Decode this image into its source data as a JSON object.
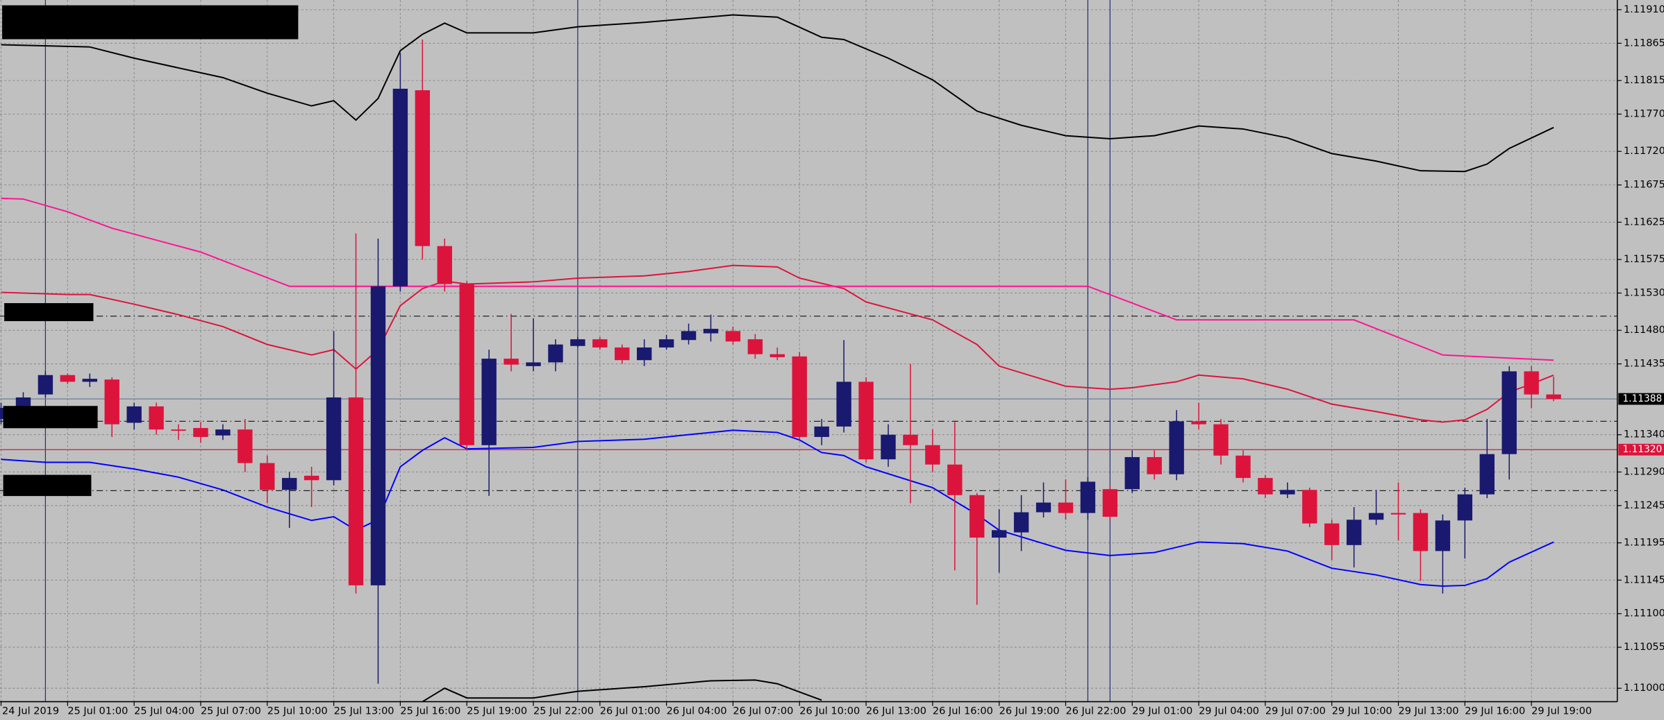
{
  "chart_data": {
    "type": "candlestick",
    "categories": [
      "24 Jul 2019",
      null,
      null,
      "25 Jul 01:00",
      null,
      null,
      "25 Jul 04:00",
      null,
      null,
      "25 Jul 07:00",
      null,
      null,
      "25 Jul 10:00",
      null,
      null,
      "25 Jul 13:00",
      null,
      null,
      "25 Jul 16:00",
      null,
      null,
      "25 Jul 19:00",
      null,
      null,
      "25 Jul 22:00",
      null,
      null,
      "26 Jul 01:00",
      null,
      null,
      "26 Jul 04:00",
      null,
      null,
      "26 Jul 07:00",
      null,
      null,
      "26 Jul 10:00",
      null,
      null,
      "26 Jul 13:00",
      null,
      null,
      "26 Jul 16:00",
      null,
      null,
      "26 Jul 19:00",
      null,
      null,
      "26 Jul 22:00",
      null,
      null,
      "29 Jul 01:00",
      null,
      null,
      "29 Jul 04:00",
      null,
      null,
      "29 Jul 07:00",
      null,
      null,
      "29 Jul 10:00",
      null,
      null,
      "29 Jul 13:00",
      null,
      null,
      "29 Jul 16:00",
      null,
      null,
      "29 Jul 19:00",
      null
    ],
    "open": [
      1.11361,
      1.11371,
      1.11394,
      1.1142,
      1.11411,
      1.11414,
      1.11356,
      1.11378,
      1.11347,
      1.11349,
      1.11339,
      1.11347,
      1.11302,
      1.11266,
      1.11285,
      1.11279,
      1.1139,
      1.11138,
      1.11539,
      1.11802,
      1.11593,
      1.11542,
      1.11326,
      1.11442,
      1.11432,
      1.11437,
      1.11459,
      1.11468,
      1.11457,
      1.1144,
      1.11457,
      1.11467,
      1.11476,
      1.11479,
      1.11468,
      1.11448,
      1.11445,
      1.11337,
      1.11351,
      1.11411,
      1.11307,
      1.1134,
      1.11326,
      1.113,
      1.11259,
      1.11202,
      1.11209,
      1.11236,
      1.11249,
      1.11235,
      1.11267,
      1.11267,
      1.1131,
      1.11287,
      1.11358,
      1.11354,
      1.11312,
      1.11282,
      1.1126,
      1.11266,
      1.11221,
      1.11192,
      1.11226,
      1.11235,
      1.11235,
      1.11184,
      1.11225,
      1.1126,
      1.11314,
      1.11425,
      1.11394
    ],
    "high": [
      1.11383,
      1.11397,
      1.11425,
      1.11422,
      1.11422,
      1.11417,
      1.11383,
      1.11383,
      1.11354,
      1.11357,
      1.11354,
      1.11361,
      1.11312,
      1.1129,
      1.11297,
      1.11479,
      1.1161,
      1.11603,
      1.11852,
      1.1187,
      1.11603,
      1.11546,
      1.11454,
      1.11502,
      1.11496,
      1.11468,
      1.11471,
      1.11471,
      1.11461,
      1.11468,
      1.11474,
      1.11489,
      1.11501,
      1.11485,
      1.11475,
      1.11457,
      1.11451,
      1.11361,
      1.11467,
      1.11417,
      1.11354,
      1.11435,
      1.11347,
      1.11357,
      1.11262,
      1.1124,
      1.11259,
      1.11276,
      1.1128,
      1.11283,
      1.11272,
      1.11319,
      1.11319,
      1.11373,
      1.11383,
      1.11361,
      1.11319,
      1.11286,
      1.11276,
      1.11269,
      1.11226,
      1.11243,
      1.11266,
      1.11276,
      1.1124,
      1.11233,
      1.11269,
      1.11361,
      1.11432,
      1.11432,
      1.11418
    ],
    "low": [
      1.11354,
      1.11361,
      1.1139,
      1.11408,
      1.11404,
      1.11337,
      1.11347,
      1.1134,
      1.11333,
      1.11329,
      1.11333,
      1.1129,
      1.11248,
      1.11215,
      1.11243,
      1.11272,
      1.11127,
      1.11006,
      1.11532,
      1.11575,
      1.11532,
      1.11319,
      1.11258,
      1.11425,
      1.11425,
      1.11425,
      1.11457,
      1.11454,
      1.11435,
      1.11432,
      1.11454,
      1.11461,
      1.11465,
      1.11461,
      1.11442,
      1.1144,
      1.11333,
      1.11326,
      1.11343,
      1.11303,
      1.11297,
      1.11248,
      1.1129,
      1.11158,
      1.11112,
      1.11155,
      1.11184,
      1.11229,
      1.11226,
      1.11226,
      1.11226,
      1.11262,
      1.1128,
      1.11279,
      1.11347,
      1.113,
      1.11276,
      1.11255,
      1.11255,
      1.11216,
      1.11172,
      1.11162,
      1.11219,
      1.11198,
      1.11144,
      1.11127,
      1.11174,
      1.11255,
      1.1128,
      1.11376,
      1.11385
    ],
    "close": [
      1.11376,
      1.1139,
      1.1142,
      1.11411,
      1.11415,
      1.11354,
      1.11378,
      1.11347,
      1.11346,
      1.11337,
      1.11347,
      1.11302,
      1.11266,
      1.11282,
      1.11279,
      1.1139,
      1.11138,
      1.11539,
      1.11804,
      1.11593,
      1.11542,
      1.11326,
      1.11442,
      1.11434,
      1.11437,
      1.11461,
      1.11468,
      1.11457,
      1.1144,
      1.11457,
      1.11468,
      1.11479,
      1.11482,
      1.11465,
      1.11448,
      1.11444,
      1.11337,
      1.11351,
      1.11411,
      1.11307,
      1.1134,
      1.11326,
      1.113,
      1.11259,
      1.11202,
      1.11212,
      1.11236,
      1.11249,
      1.11235,
      1.11277,
      1.1123,
      1.1131,
      1.11287,
      1.11358,
      1.11354,
      1.11312,
      1.11282,
      1.1126,
      1.11266,
      1.11221,
      1.11192,
      1.11226,
      1.11235,
      1.11233,
      1.11184,
      1.11225,
      1.1126,
      1.11314,
      1.11425,
      1.11394,
      1.11388
    ],
    "up_color": "#191970",
    "down_color": "#dc143c",
    "lines": [
      {
        "color": "#000000",
        "x": [
          0,
          4,
          6,
          10,
          12,
          14,
          15,
          16,
          17,
          18,
          19,
          20,
          21,
          24,
          26,
          29,
          33,
          35,
          37,
          38,
          40,
          42,
          44,
          46,
          48,
          50,
          52,
          54,
          56,
          58,
          60,
          62,
          64,
          66,
          67,
          68,
          70
        ],
        "values": [
          1.11863,
          1.1186,
          1.11845,
          1.11819,
          1.11798,
          1.11781,
          1.11788,
          1.11762,
          1.11791,
          1.11855,
          1.11877,
          1.11892,
          1.11879,
          1.11879,
          1.11887,
          1.11893,
          1.11903,
          1.119,
          1.11873,
          1.1187,
          1.11845,
          1.11816,
          1.11774,
          1.11755,
          1.11741,
          1.11737,
          1.11741,
          1.11754,
          1.1175,
          1.11738,
          1.11717,
          1.11707,
          1.11694,
          1.11693,
          1.11703,
          1.11724,
          1.11752
        ]
      },
      {
        "color": "#dc143c",
        "x": [
          0,
          3,
          4,
          6,
          8,
          10,
          12,
          14,
          15,
          16,
          17,
          18,
          19,
          20,
          21,
          24,
          26,
          29,
          31,
          33,
          35,
          36,
          38,
          39,
          42,
          44,
          45,
          47,
          48,
          50,
          51,
          53,
          54,
          56,
          58,
          60,
          62,
          64,
          65,
          66,
          67,
          68,
          69,
          70
        ],
        "values": [
          1.11531,
          1.11528,
          1.11528,
          1.11515,
          1.11501,
          1.11485,
          1.11461,
          1.11447,
          1.11454,
          1.11428,
          1.11454,
          1.11513,
          1.11536,
          1.11546,
          1.11542,
          1.11545,
          1.1155,
          1.11553,
          1.11559,
          1.11567,
          1.11565,
          1.1155,
          1.11536,
          1.11518,
          1.11494,
          1.11461,
          1.11432,
          1.11414,
          1.11405,
          1.11401,
          1.11403,
          1.11411,
          1.1142,
          1.11415,
          1.11401,
          1.11381,
          1.11371,
          1.1136,
          1.11357,
          1.1136,
          1.11374,
          1.11397,
          1.11408,
          1.1142
        ]
      },
      {
        "color": "#0000ff",
        "x": [
          0,
          2,
          4,
          6,
          8,
          10,
          12,
          14,
          15,
          16,
          17,
          18,
          19,
          20,
          21,
          24,
          26,
          29,
          31,
          33,
          35,
          36,
          37,
          38,
          39,
          42,
          44,
          45,
          47,
          48,
          50,
          52,
          54,
          56,
          58,
          60,
          62,
          64,
          65,
          66,
          67,
          68,
          70
        ],
        "values": [
          1.11307,
          1.11303,
          1.11303,
          1.11294,
          1.11283,
          1.11266,
          1.11243,
          1.11225,
          1.1123,
          1.11212,
          1.11226,
          1.11297,
          1.11319,
          1.11336,
          1.11321,
          1.11323,
          1.11331,
          1.11334,
          1.1134,
          1.11346,
          1.11343,
          1.11333,
          1.11316,
          1.11312,
          1.11297,
          1.11269,
          1.11233,
          1.11212,
          1.11194,
          1.11185,
          1.11178,
          1.11182,
          1.11196,
          1.11194,
          1.11184,
          1.11161,
          1.11152,
          1.11139,
          1.11137,
          1.11138,
          1.11147,
          1.11169,
          1.11196
        ]
      },
      {
        "color": "#ff1493",
        "x": [
          0,
          1,
          3,
          5,
          9,
          13,
          49,
          53,
          61,
          65,
          70
        ],
        "values": [
          1.11657,
          1.11656,
          1.11639,
          1.11617,
          1.11585,
          1.11539,
          1.11539,
          1.11494,
          1.11494,
          1.11447,
          1.1144
        ]
      },
      {
        "color": "#000000",
        "x": [
          19,
          20,
          21,
          24,
          26,
          29,
          32,
          34,
          35,
          37
        ],
        "values": [
          1.10982,
          1.11,
          1.10987,
          1.10987,
          1.10996,
          1.11002,
          1.1101,
          1.11011,
          1.11006,
          1.10984
        ]
      }
    ],
    "hlines": [
      {
        "value": 1.11499,
        "color": "#202020",
        "dashed": true
      },
      {
        "value": 1.11358,
        "color": "#202020",
        "dashed": true
      },
      {
        "value": 1.11265,
        "color": "#202020",
        "dashed": true
      },
      {
        "value": 1.11388,
        "color": "#6b7b9c",
        "tag": "#000000"
      },
      {
        "value": 1.1132,
        "label": "1.11320",
        "color": "#dc143c",
        "tag": "#dc143c"
      }
    ],
    "vlines": [
      2,
      26,
      49,
      50
    ],
    "vline_color": "#24307a",
    "ylim": [
      1.10982,
      1.11923
    ],
    "yticks": [
      {
        "value": 1.1191,
        "label": "1.11910"
      },
      1.11865,
      1.11815,
      {
        "value": 1.1177,
        "label": "1.11770"
      },
      {
        "value": 1.1172,
        "label": "1.11720"
      },
      1.11675,
      1.11625,
      1.11575,
      {
        "value": 1.1153,
        "label": "1.11530"
      },
      {
        "value": 1.1148,
        "label": "1.11480"
      },
      1.11435,
      {
        "value": 1.1134,
        "label": "1.11340"
      },
      {
        "value": 1.1129,
        "label": "1.11290"
      },
      1.11245,
      1.11195,
      1.11145,
      {
        "value": 1.111,
        "label": "1.11100"
      },
      1.11055,
      {
        "value": 1.11,
        "label": "1.11000"
      }
    ],
    "grid": true
  }
}
